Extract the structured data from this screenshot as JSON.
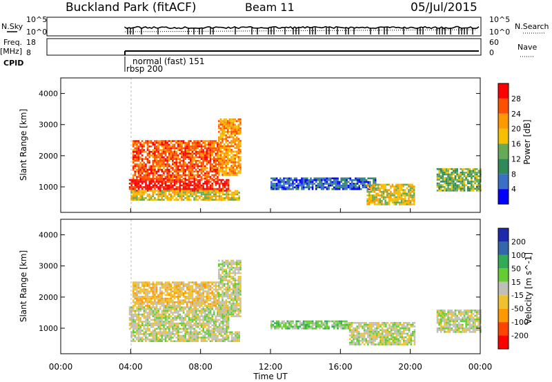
{
  "header": {
    "station": "Buckland Park (fitACF)",
    "beam": "Beam 11",
    "date": "05/Jul/2015"
  },
  "top_panels": {
    "nsky_label": "N.Sky",
    "nsearch_label": "N.Search",
    "nsky_ticks": [
      "10^5",
      "10^0"
    ],
    "nsearch_ticks": [
      "10^5",
      "10^0"
    ],
    "freq_label": "Freq.",
    "freq_unit": "[MHz]",
    "freq_ticks": [
      "18",
      "8"
    ],
    "nave_label": "Nave",
    "nave_ticks": [
      "60",
      "0"
    ],
    "cpid_label": "CPID",
    "cpid_mode_1": "normal (fast) 151",
    "cpid_mode_2": "rbsp 200"
  },
  "colors": {
    "power_scale": [
      "#0000ff",
      "#3a6fc8",
      "#2e8b57",
      "#66aa55",
      "#f6c000",
      "#ff9900",
      "#ff5000",
      "#ff0000"
    ],
    "velocity_scale": [
      "#ff0000",
      "#ff4400",
      "#ff9900",
      "#f0c030",
      "#c0c0b8",
      "#66cc33",
      "#33aa55",
      "#3366aa",
      "#1a2aaa"
    ]
  },
  "chart_data": [
    {
      "type": "heatmap",
      "title": "Power",
      "ylabel": "Slant Range [km]",
      "y_ticks": [
        "1000",
        "2000",
        "3000",
        "4000"
      ],
      "ylim": [
        180,
        4500
      ],
      "xlim": [
        0,
        24
      ],
      "colorbar_label": "Power [dB]",
      "colorbar_ticks": [
        "4",
        "8",
        "12",
        "16",
        "20",
        "24",
        "28"
      ],
      "regions": [
        {
          "t0": 3.9,
          "t1": 9.6,
          "r0": 900,
          "r1": 1250,
          "level": 7
        },
        {
          "t0": 4.1,
          "t1": 9.0,
          "r0": 1250,
          "r1": 2500,
          "level": 6
        },
        {
          "t0": 4.0,
          "t1": 10.2,
          "r0": 600,
          "r1": 900,
          "level": 4
        },
        {
          "t0": 9.0,
          "t1": 10.3,
          "r0": 1400,
          "r1": 3200,
          "level": 5
        },
        {
          "t0": 12.0,
          "t1": 18.0,
          "r0": 900,
          "r1": 1300,
          "level": 1
        },
        {
          "t0": 17.5,
          "t1": 20.2,
          "r0": 450,
          "r1": 1100,
          "level": 4
        },
        {
          "t0": 21.5,
          "t1": 24.0,
          "r0": 900,
          "r1": 1600,
          "level": 3
        }
      ]
    },
    {
      "type": "heatmap",
      "title": "Velocity",
      "ylabel": "Slant Range [km]",
      "xlabel": "Time UT",
      "y_ticks": [
        "1000",
        "2000",
        "3000",
        "4000"
      ],
      "x_ticks": [
        "00:00",
        "04:00",
        "08:00",
        "12:00",
        "16:00",
        "20:00",
        "00:00"
      ],
      "ylim": [
        180,
        4500
      ],
      "xlim": [
        0,
        24
      ],
      "colorbar_label": "Velocity [m s^-1]",
      "colorbar_ticks": [
        "200",
        "100",
        "50",
        "15",
        "-15",
        "-50",
        "-100",
        "-200"
      ],
      "regions": [
        {
          "t0": 3.9,
          "t1": 9.6,
          "r0": 900,
          "r1": 1700,
          "level": 4
        },
        {
          "t0": 4.1,
          "t1": 9.0,
          "r0": 1700,
          "r1": 2500,
          "level": 3
        },
        {
          "t0": 4.0,
          "t1": 10.2,
          "r0": 600,
          "r1": 900,
          "level": 4
        },
        {
          "t0": 9.0,
          "t1": 10.3,
          "r0": 1400,
          "r1": 3200,
          "level": 4
        },
        {
          "t0": 12.0,
          "t1": 16.5,
          "r0": 1000,
          "r1": 1250,
          "level": 5
        },
        {
          "t0": 16.5,
          "t1": 20.2,
          "r0": 500,
          "r1": 1200,
          "level": 4
        },
        {
          "t0": 21.5,
          "t1": 24.0,
          "r0": 900,
          "r1": 1600,
          "level": 4
        }
      ]
    }
  ]
}
